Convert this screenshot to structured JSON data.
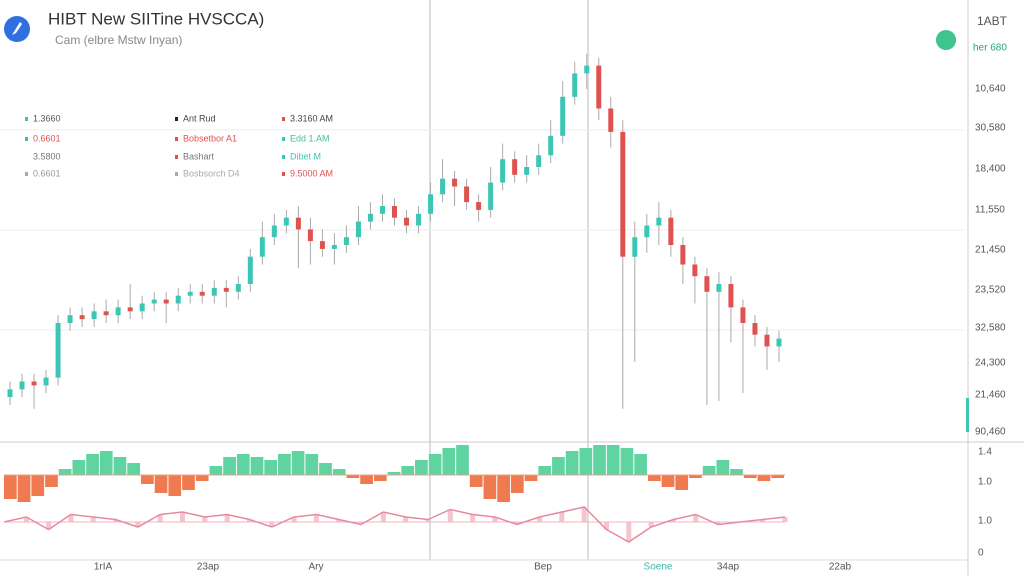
{
  "header": {
    "title": "HIBT New SIITine HVSCCA)",
    "subtitle": "Cam (elbre Mstw Inyan)",
    "corner_label": "1ABT",
    "badge": "her 680"
  },
  "legend": {
    "rows": [
      [
        "1.3660",
        "Ant Rud",
        "3.3160 AM"
      ],
      [
        "0.6601",
        "Bobsetbor A1",
        "Edd 1.AM"
      ],
      [
        "3.5800",
        "Bashart",
        "Dibet M"
      ],
      [
        "0.6601",
        "Bosbsorch D4",
        "9.5000 AM"
      ]
    ]
  },
  "chart_data": {
    "type": "candlestick",
    "up_color": "#3cc6b4",
    "down_color": "#e0524f",
    "ylim": [
      0,
      100
    ],
    "ohlc": [
      [
        11,
        15,
        9,
        13
      ],
      [
        13,
        17,
        11,
        15
      ],
      [
        15,
        17,
        8,
        14
      ],
      [
        14,
        18,
        12,
        16
      ],
      [
        16,
        32,
        14,
        30
      ],
      [
        30,
        34,
        28,
        32
      ],
      [
        32,
        34,
        29,
        31
      ],
      [
        31,
        35,
        29,
        33
      ],
      [
        33,
        36,
        30,
        32
      ],
      [
        32,
        36,
        30,
        34
      ],
      [
        34,
        40,
        31,
        33
      ],
      [
        33,
        37,
        31,
        35
      ],
      [
        35,
        38,
        33,
        36
      ],
      [
        36,
        38,
        30,
        35
      ],
      [
        35,
        39,
        33,
        37
      ],
      [
        37,
        40,
        35,
        38
      ],
      [
        38,
        40,
        35,
        37
      ],
      [
        37,
        41,
        35,
        39
      ],
      [
        39,
        41,
        34,
        38
      ],
      [
        38,
        42,
        36,
        40
      ],
      [
        40,
        49,
        38,
        47
      ],
      [
        47,
        56,
        45,
        52
      ],
      [
        52,
        58,
        50,
        55
      ],
      [
        55,
        59,
        53,
        57
      ],
      [
        57,
        60,
        44,
        54
      ],
      [
        54,
        57,
        45,
        51
      ],
      [
        51,
        54,
        47,
        49
      ],
      [
        49,
        53,
        45,
        50
      ],
      [
        50,
        55,
        48,
        52
      ],
      [
        52,
        60,
        50,
        56
      ],
      [
        56,
        61,
        54,
        58
      ],
      [
        58,
        63,
        56,
        60
      ],
      [
        60,
        62,
        55,
        57
      ],
      [
        57,
        59,
        53,
        55
      ],
      [
        55,
        60,
        53,
        58
      ],
      [
        58,
        66,
        56,
        63
      ],
      [
        63,
        72,
        61,
        67
      ],
      [
        67,
        69,
        60,
        65
      ],
      [
        65,
        67,
        59,
        61
      ],
      [
        61,
        63,
        56,
        59
      ],
      [
        59,
        70,
        57,
        66
      ],
      [
        66,
        76,
        64,
        72
      ],
      [
        72,
        74,
        66,
        68
      ],
      [
        68,
        73,
        66,
        70
      ],
      [
        70,
        76,
        68,
        73
      ],
      [
        73,
        82,
        71,
        78
      ],
      [
        78,
        92,
        76,
        88
      ],
      [
        88,
        97,
        86,
        94
      ],
      [
        94,
        99,
        90,
        96
      ],
      [
        96,
        98,
        82,
        85
      ],
      [
        85,
        88,
        75,
        79
      ],
      [
        79,
        82,
        8,
        47
      ],
      [
        47,
        56,
        20,
        52
      ],
      [
        52,
        58,
        48,
        55
      ],
      [
        55,
        61,
        50,
        57
      ],
      [
        57,
        59,
        47,
        50
      ],
      [
        50,
        52,
        40,
        45
      ],
      [
        45,
        47,
        35,
        42
      ],
      [
        42,
        44,
        9,
        38
      ],
      [
        38,
        43,
        10,
        40
      ],
      [
        40,
        42,
        25,
        34
      ],
      [
        34,
        36,
        12,
        30
      ],
      [
        30,
        32,
        24,
        27
      ],
      [
        27,
        29,
        18,
        24
      ],
      [
        24,
        28,
        20,
        26
      ]
    ],
    "price_labels": [
      "10,640",
      "30,580",
      "18,400",
      "11,550",
      "21,450",
      "23,520",
      "32,580",
      "24,300",
      "21,460",
      "90,460"
    ],
    "indicator_labels": [
      "1.4",
      "1.0",
      "1.0",
      "0"
    ],
    "x_labels": [
      "1rIA",
      "23ap",
      "Ary",
      "Bep",
      "Soene",
      "34ap",
      "22ab"
    ],
    "histogram": {
      "up_color": "#5fd3a0",
      "down_color": "#f07a4f",
      "ylim": [
        -10,
        10
      ],
      "values": [
        -8,
        -9,
        -7,
        -4,
        2,
        5,
        7,
        8,
        6,
        4,
        -3,
        -6,
        -7,
        -5,
        -2,
        3,
        6,
        7,
        6,
        5,
        7,
        8,
        7,
        4,
        2,
        -1,
        -3,
        -2,
        1,
        3,
        5,
        7,
        9,
        10,
        -4,
        -8,
        -9,
        -6,
        -2,
        3,
        6,
        8,
        9,
        10,
        10,
        9,
        7,
        -2,
        -4,
        -5,
        -1,
        3,
        5,
        2,
        -1,
        -2,
        -1
      ]
    },
    "oscillator": {
      "color": "#e58aa0",
      "ylim": [
        -10,
        10
      ],
      "values": [
        0,
        2,
        -3,
        3,
        2,
        1,
        -2,
        3,
        4,
        2,
        3,
        1,
        -2,
        2,
        3,
        1,
        -1,
        4,
        2,
        1,
        5,
        3,
        2,
        -1,
        2,
        4,
        6,
        -3,
        -8,
        -2,
        1,
        3,
        -1,
        0,
        1,
        2
      ]
    }
  }
}
